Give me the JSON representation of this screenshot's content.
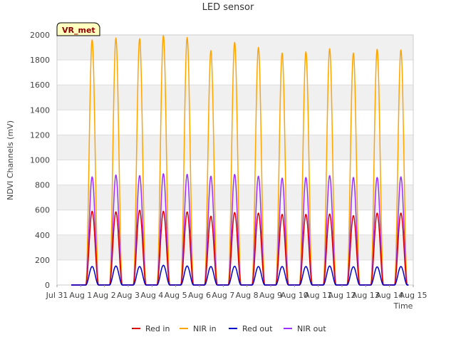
{
  "chart_data": {
    "type": "line",
    "title": "LED sensor",
    "xlabel": "Time",
    "ylabel": "NDVI Channels (mV)",
    "ylim": [
      0,
      2000
    ],
    "yticks": [
      0,
      200,
      400,
      600,
      800,
      1000,
      1200,
      1400,
      1600,
      1800,
      2000
    ],
    "xlim": [
      0,
      15
    ],
    "xticks": [
      "Jul 31",
      "Aug 1",
      "Aug 2",
      "Aug 3",
      "Aug 4",
      "Aug 5",
      "Aug 6",
      "Aug 7",
      "Aug 8",
      "Aug 9",
      "Aug 10",
      "Aug 11",
      "Aug 12",
      "Aug 13",
      "Aug 14",
      "Aug 15"
    ],
    "badge": "VR_met",
    "peak_days": [
      "Aug 1",
      "Aug 2",
      "Aug 3",
      "Aug 4",
      "Aug 5",
      "Aug 6",
      "Aug 7",
      "Aug 8",
      "Aug 9",
      "Aug 10",
      "Aug 11",
      "Aug 12",
      "Aug 13",
      "Aug 14"
    ],
    "series": [
      {
        "name": "Red in",
        "color": "#dd0000",
        "peaks": [
          590,
          585,
          598,
          590,
          585,
          550,
          580,
          575,
          565,
          565,
          568,
          555,
          575,
          575
        ]
      },
      {
        "name": "NIR in",
        "color": "#ffa500",
        "peaks": [
          1960,
          1975,
          1970,
          1995,
          1980,
          1875,
          1940,
          1900,
          1855,
          1865,
          1890,
          1855,
          1885,
          1880
        ]
      },
      {
        "name": "Red out",
        "color": "#0000cc",
        "peaks": [
          148,
          152,
          148,
          158,
          152,
          148,
          150,
          148,
          148,
          148,
          152,
          146,
          145,
          148
        ]
      },
      {
        "name": "NIR out",
        "color": "#9b30ff",
        "peaks": [
          865,
          880,
          875,
          890,
          885,
          870,
          885,
          870,
          855,
          860,
          875,
          860,
          860,
          865
        ]
      }
    ]
  }
}
